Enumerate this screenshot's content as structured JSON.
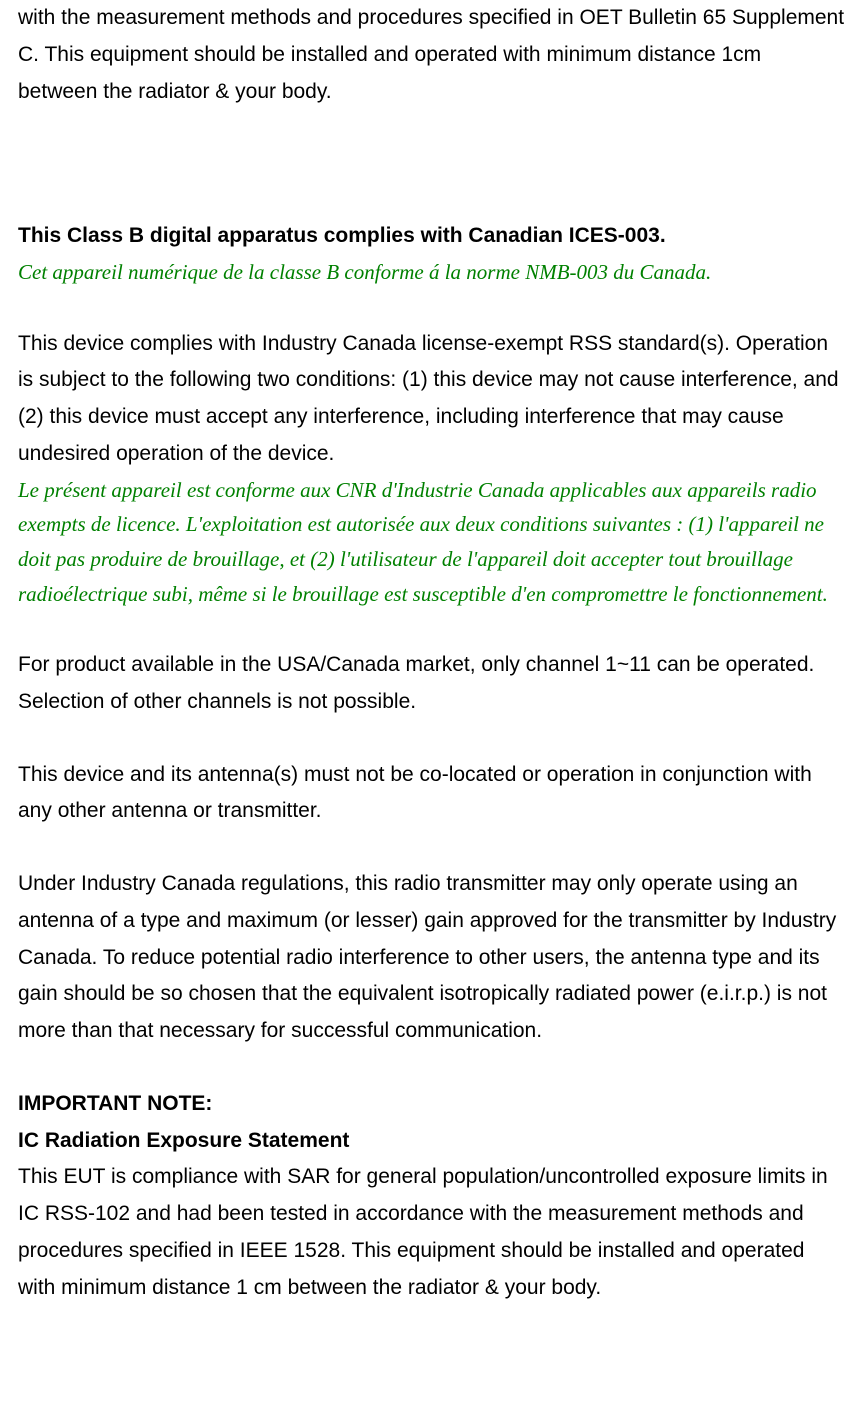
{
  "colors": {
    "text_black": "#000000",
    "text_green": "#008000",
    "background": "#ffffff"
  },
  "typography": {
    "body_font": "Arial",
    "body_size_pt": 16,
    "french_font": "Times New Roman",
    "french_size_pt": 16,
    "line_height": 1.75
  },
  "paragraphs": {
    "p1": "with the measurement methods and procedures specified in OET Bulletin 65 Supplement C. This equipment should be installed and operated with minimum distance 1cm between the radiator & your body.",
    "heading1": "This Class B digital apparatus complies with Canadian ICES-003.",
    "french1": "Cet appareil numérique de la classe B conforme á la norme NMB-003 du Canada.",
    "p2": "This device complies with Industry Canada license-exempt RSS standard(s). Operation is subject to the following two conditions: (1) this device may not cause interference, and (2) this device must accept any interference, including interference that may cause undesired operation of the device.",
    "french2": "Le présent appareil est conforme aux CNR d'Industrie Canada applicables aux appareils radio exempts de licence. L'exploitation est autorisée aux deux conditions suivantes : (1) l'appareil ne doit pas produire de brouillage, et (2) l'utilisateur de l'appareil doit accepter tout brouillage radioélectrique subi, même si le brouillage est susceptible d'en compromettre le fonctionnement.",
    "p3": "For product available in the USA/Canada market, only channel 1~11 can be operated. Selection of other channels is not possible.",
    "p4": "This device and its antenna(s) must not be co-located or operation in conjunction with any other antenna or transmitter.",
    "p5": "Under Industry Canada regulations, this radio transmitter may only operate using an antenna of a type and maximum (or lesser) gain approved for the transmitter by Industry Canada. To reduce potential radio interference to other users, the antenna type and its gain should be so chosen that the equivalent isotropically radiated power (e.i.r.p.) is not more than that necessary for successful communication.",
    "heading2": "IMPORTANT NOTE:",
    "heading3": "IC Radiation Exposure Statement",
    "p6": "This EUT is compliance with SAR for general population/uncontrolled exposure limits in IC RSS-102 and had been tested in accordance with the measurement methods and procedures specified in IEEE 1528. This equipment should be installed and operated with minimum distance 1 cm between the radiator & your body."
  }
}
